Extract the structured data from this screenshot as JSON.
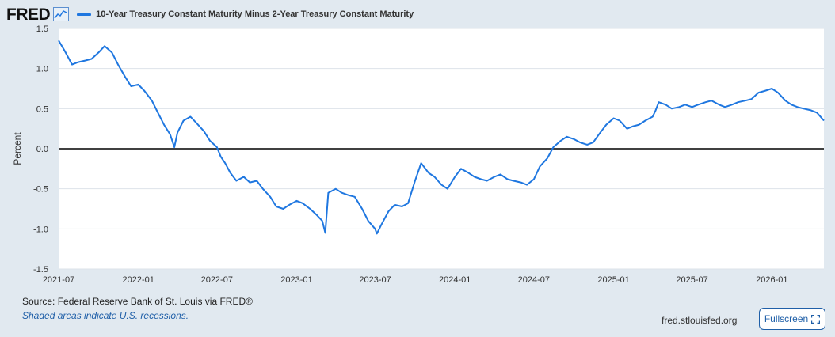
{
  "header": {
    "logo_text": "FRED",
    "logo_icon": "line-chart-icon",
    "legend_label": "10-Year Treasury Constant Maturity Minus 2-Year Treasury Constant Maturity"
  },
  "footer": {
    "source": "Source: Federal Reserve Bank of St. Louis via FRED®",
    "recession_note": "Shaded areas indicate U.S. recessions.",
    "site": "fred.stlouisfed.org",
    "fullscreen_label": "Fullscreen",
    "fullscreen_icon": "expand-icon"
  },
  "colors": {
    "background": "#e1e9f0",
    "plot_background": "#ffffff",
    "series": "#1f77e0",
    "zero_line": "#000000",
    "grid": "#dde3ea"
  },
  "chart_data": {
    "type": "line",
    "title": "10-Year Treasury Constant Maturity Minus 2-Year Treasury Constant Maturity",
    "xlabel": "",
    "ylabel": "Percent",
    "xlim": [
      "2021-07-01",
      "2026-05-01"
    ],
    "ylim": [
      -1.5,
      1.5
    ],
    "x_ticks": [
      "2021-07",
      "2022-01",
      "2022-07",
      "2023-01",
      "2023-07",
      "2024-01",
      "2024-07",
      "2025-01",
      "2025-07",
      "2026-01"
    ],
    "y_ticks": [
      "1.5",
      "1.0",
      "0.5",
      "0.0",
      "-0.5",
      "-1.0",
      "-1.5"
    ],
    "grid": true,
    "zero_line": true,
    "series": [
      {
        "name": "10-Year Treasury Constant Maturity Minus 2-Year Treasury Constant Maturity",
        "x": [
          "2021-07-01",
          "2021-07-15",
          "2021-08-01",
          "2021-08-15",
          "2021-09-01",
          "2021-09-15",
          "2021-10-01",
          "2021-10-15",
          "2021-11-01",
          "2021-11-15",
          "2021-12-01",
          "2021-12-15",
          "2022-01-01",
          "2022-01-15",
          "2022-02-01",
          "2022-02-15",
          "2022-03-01",
          "2022-03-15",
          "2022-03-25",
          "2022-04-01",
          "2022-04-15",
          "2022-05-01",
          "2022-05-15",
          "2022-06-01",
          "2022-06-15",
          "2022-07-01",
          "2022-07-10",
          "2022-07-20",
          "2022-08-01",
          "2022-08-15",
          "2022-09-01",
          "2022-09-15",
          "2022-10-01",
          "2022-10-15",
          "2022-11-01",
          "2022-11-15",
          "2022-12-01",
          "2022-12-15",
          "2023-01-01",
          "2023-01-15",
          "2023-02-01",
          "2023-02-15",
          "2023-03-01",
          "2023-03-08",
          "2023-03-15",
          "2023-04-01",
          "2023-04-15",
          "2023-05-01",
          "2023-05-15",
          "2023-06-01",
          "2023-06-15",
          "2023-07-01",
          "2023-07-05",
          "2023-07-15",
          "2023-08-01",
          "2023-08-15",
          "2023-09-01",
          "2023-09-15",
          "2023-10-01",
          "2023-10-15",
          "2023-11-01",
          "2023-11-15",
          "2023-12-01",
          "2023-12-15",
          "2024-01-01",
          "2024-01-15",
          "2024-02-01",
          "2024-02-15",
          "2024-03-01",
          "2024-03-15",
          "2024-04-01",
          "2024-04-15",
          "2024-05-01",
          "2024-05-15",
          "2024-06-01",
          "2024-06-15",
          "2024-07-01",
          "2024-07-15",
          "2024-08-01",
          "2024-08-15",
          "2024-09-01",
          "2024-09-15",
          "2024-10-01",
          "2024-10-15",
          "2024-11-01",
          "2024-11-15",
          "2024-12-01",
          "2024-12-15",
          "2025-01-01",
          "2025-01-15",
          "2025-02-01",
          "2025-02-15",
          "2025-03-01",
          "2025-03-15",
          "2025-04-01",
          "2025-04-08",
          "2025-04-15",
          "2025-05-01",
          "2025-05-15",
          "2025-06-01",
          "2025-06-15",
          "2025-07-01",
          "2025-07-15",
          "2025-08-01",
          "2025-08-15",
          "2025-09-01",
          "2025-09-15",
          "2025-10-01",
          "2025-10-15",
          "2025-11-01",
          "2025-11-15",
          "2025-12-01",
          "2025-12-15",
          "2026-01-01",
          "2026-01-15",
          "2026-02-01",
          "2026-02-15",
          "2026-03-01",
          "2026-03-15",
          "2026-04-01",
          "2026-04-15",
          "2026-05-01"
        ],
        "values": [
          1.35,
          1.22,
          1.05,
          1.08,
          1.1,
          1.12,
          1.2,
          1.28,
          1.2,
          1.05,
          0.9,
          0.78,
          0.8,
          0.72,
          0.6,
          0.45,
          0.3,
          0.18,
          0.02,
          0.2,
          0.35,
          0.4,
          0.32,
          0.22,
          0.1,
          0.02,
          -0.1,
          -0.18,
          -0.3,
          -0.4,
          -0.35,
          -0.42,
          -0.4,
          -0.5,
          -0.6,
          -0.72,
          -0.75,
          -0.7,
          -0.65,
          -0.68,
          -0.75,
          -0.82,
          -0.9,
          -1.05,
          -0.55,
          -0.5,
          -0.55,
          -0.58,
          -0.6,
          -0.75,
          -0.9,
          -1.0,
          -1.06,
          -0.95,
          -0.78,
          -0.7,
          -0.72,
          -0.68,
          -0.4,
          -0.18,
          -0.3,
          -0.35,
          -0.45,
          -0.5,
          -0.35,
          -0.25,
          -0.3,
          -0.35,
          -0.38,
          -0.4,
          -0.35,
          -0.32,
          -0.38,
          -0.4,
          -0.42,
          -0.45,
          -0.38,
          -0.22,
          -0.12,
          0.02,
          0.1,
          0.15,
          0.12,
          0.08,
          0.05,
          0.08,
          0.2,
          0.3,
          0.38,
          0.35,
          0.25,
          0.28,
          0.3,
          0.35,
          0.4,
          0.48,
          0.58,
          0.55,
          0.5,
          0.52,
          0.55,
          0.52,
          0.55,
          0.58,
          0.6,
          0.55,
          0.52,
          0.55,
          0.58,
          0.6,
          0.62,
          0.7,
          0.72,
          0.75,
          0.7,
          0.6,
          0.55,
          0.52,
          0.5,
          0.48,
          0.45,
          0.35
        ]
      }
    ]
  }
}
